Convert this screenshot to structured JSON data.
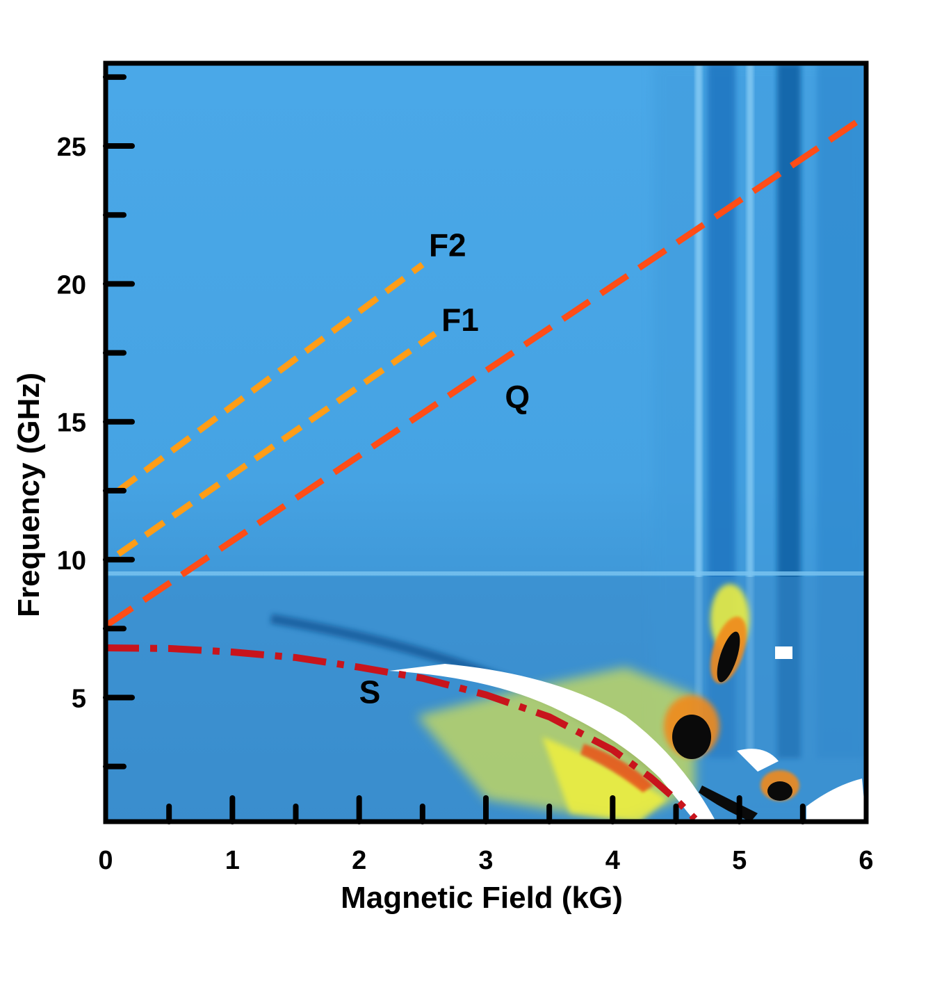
{
  "chart_data": {
    "type": "heatmap",
    "xlabel": "Magnetic Field (kG)",
    "ylabel": "Frequency (GHz)",
    "xlim": [
      0,
      6
    ],
    "ylim": [
      0.5,
      28
    ],
    "x_ticks": [
      0,
      1,
      2,
      3,
      4,
      5,
      6
    ],
    "y_ticks": [
      5,
      10,
      15,
      20,
      25
    ],
    "colors": {
      "background": "#4aa6e6",
      "low_band": "#3f97d6",
      "absorption": "#0a5ea3",
      "yellow": "#f4f23a",
      "orange": "#f08a1a",
      "red": "#d81c10",
      "black": "#0a0a0a",
      "white": "#ffffff",
      "line_F": "#ff9d17",
      "line_Q": "#ff4d17",
      "line_S": "#c8141c"
    },
    "overlay_lines": [
      {
        "label": "F2",
        "style": "dashed",
        "x": [
          0.1,
          2.5
        ],
        "y": [
          12.5,
          20.7
        ]
      },
      {
        "label": "F1",
        "style": "dashed",
        "x": [
          0.1,
          2.6
        ],
        "y": [
          10.2,
          18.2
        ]
      },
      {
        "label": "Q",
        "style": "dashed",
        "x": [
          0.0,
          6.0
        ],
        "y": [
          7.6,
          26.1
        ]
      },
      {
        "label": "S",
        "style": "dash-dot",
        "x": [
          0.0,
          0.5,
          1.0,
          1.5,
          2.0,
          2.5,
          3.0,
          3.5,
          4.0,
          4.3,
          4.5,
          4.65
        ],
        "y": [
          6.8,
          6.78,
          6.65,
          6.45,
          6.1,
          5.7,
          5.1,
          4.3,
          3.1,
          2.1,
          1.3,
          0.6
        ]
      }
    ],
    "annotations": [
      {
        "text": "F2",
        "x": 2.55,
        "y": 21.0
      },
      {
        "text": "F1",
        "x": 2.65,
        "y": 18.3
      },
      {
        "text": "Q",
        "x": 3.15,
        "y": 15.5
      },
      {
        "text": "S",
        "x": 2.0,
        "y": 4.8
      }
    ]
  }
}
